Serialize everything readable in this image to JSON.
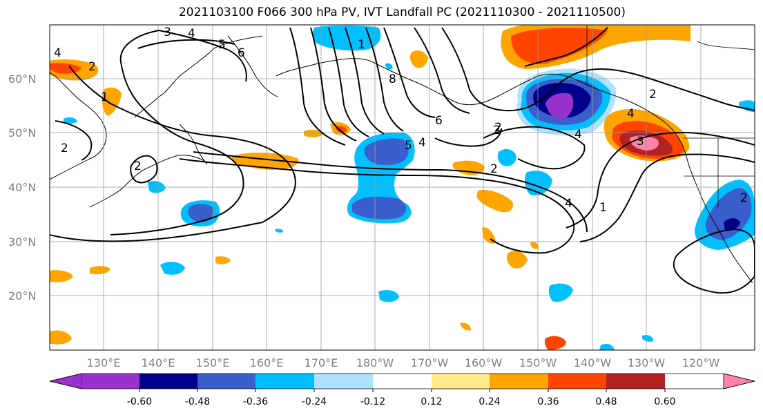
{
  "title": "2021103100 F066 300 hPa PV, IVT Landfall PC (2021110300 - 2021110500)",
  "latitude_labels": [
    "60°N",
    "50°N",
    "40°N",
    "30°N",
    "20°N"
  ],
  "longitude_labels": [
    "130°E",
    "140°E",
    "150°E",
    "160°E",
    "170°E",
    "180°W",
    "170°W",
    "160°W",
    "150°W",
    "140°W",
    "130°W",
    "120°W"
  ],
  "colorbar": {
    "colors": [
      "#9932cc",
      "#00008b",
      "#3a5fcd",
      "#00bfff",
      "#b0e2ff",
      "#ffffff",
      "#ffeb8a",
      "#ffa500",
      "#ff4500",
      "#b22222",
      "#ff82ab"
    ],
    "tick_labels": [
      "-0.60",
      "-0.48",
      "-0.36",
      "-0.24",
      "-0.12",
      "0.12",
      "0.24",
      "0.36",
      "0.48",
      "0.60"
    ]
  },
  "contour_labels": [
    "3",
    "4",
    "5",
    "6",
    "4",
    "2",
    "1",
    "8",
    "6",
    "5",
    "4",
    "1",
    "2",
    "2",
    "4",
    "4",
    "3",
    "2",
    "2",
    "2",
    "1",
    "2",
    "4",
    "2"
  ]
}
